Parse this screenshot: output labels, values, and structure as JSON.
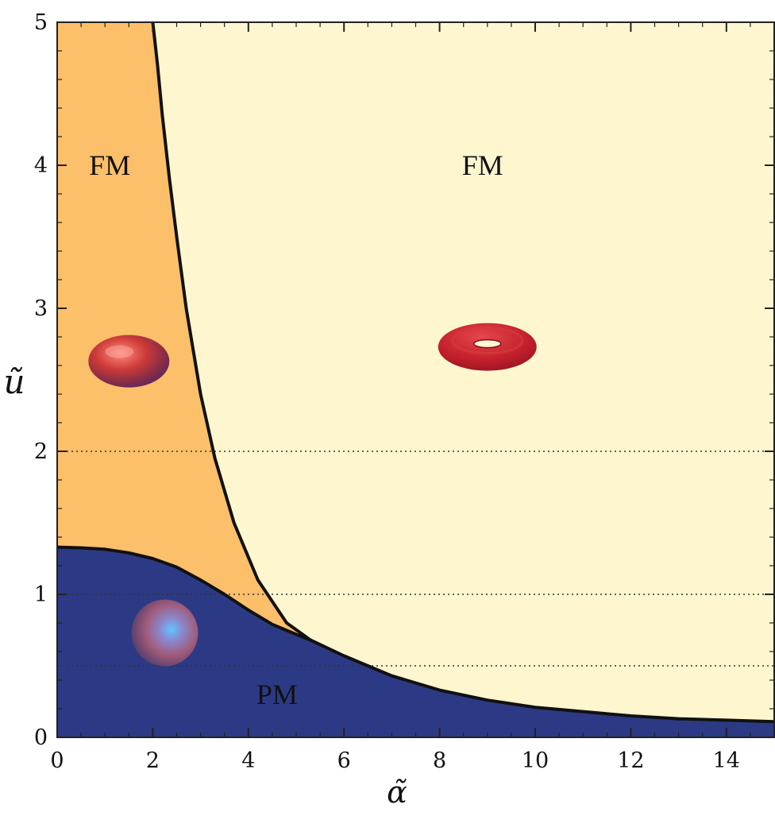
{
  "chart_data": {
    "type": "area",
    "xlabel": "α̃",
    "ylabel": "ũ",
    "xlim": [
      0,
      15
    ],
    "ylim": [
      0,
      5
    ],
    "xticks": [
      0,
      2,
      4,
      6,
      8,
      10,
      12,
      14
    ],
    "yticks": [
      0,
      1,
      2,
      3,
      4,
      5
    ],
    "reference_lines_y": [
      0.5,
      1,
      2
    ],
    "grid": false,
    "colors": {
      "pm_region": "#2c3a85",
      "fm_left_region": "#fcbf6a",
      "fm_right_region": "#fef6cf",
      "boundary": "#111111"
    },
    "series": [
      {
        "values": [
          {
            "x": 2.0,
            "y": 5.0
          },
          {
            "x": 2.1,
            "y": 4.7
          },
          {
            "x": 2.2,
            "y": 4.35
          },
          {
            "x": 2.35,
            "y": 3.9
          },
          {
            "x": 2.5,
            "y": 3.5
          },
          {
            "x": 2.7,
            "y": 3.0
          },
          {
            "x": 3.0,
            "y": 2.4
          },
          {
            "x": 3.3,
            "y": 1.95
          },
          {
            "x": 3.7,
            "y": 1.5
          },
          {
            "x": 4.2,
            "y": 1.1
          },
          {
            "x": 4.8,
            "y": 0.8
          },
          {
            "x": 5.3,
            "y": 0.68
          }
        ]
      },
      {
        "values": [
          {
            "x": 0.0,
            "y": 1.33
          },
          {
            "x": 0.5,
            "y": 1.325
          },
          {
            "x": 1.0,
            "y": 1.315
          },
          {
            "x": 1.5,
            "y": 1.29
          },
          {
            "x": 2.0,
            "y": 1.25
          },
          {
            "x": 2.5,
            "y": 1.19
          },
          {
            "x": 3.0,
            "y": 1.1
          },
          {
            "x": 3.5,
            "y": 1.0
          },
          {
            "x": 4.0,
            "y": 0.89
          },
          {
            "x": 4.5,
            "y": 0.79
          },
          {
            "x": 5.0,
            "y": 0.72
          },
          {
            "x": 5.3,
            "y": 0.68
          },
          {
            "x": 6.0,
            "y": 0.57
          },
          {
            "x": 7.0,
            "y": 0.43
          },
          {
            "x": 8.0,
            "y": 0.33
          },
          {
            "x": 9.0,
            "y": 0.26
          },
          {
            "x": 10.0,
            "y": 0.21
          },
          {
            "x": 11.0,
            "y": 0.18
          },
          {
            "x": 12.0,
            "y": 0.15
          },
          {
            "x": 13.0,
            "y": 0.13
          },
          {
            "x": 14.0,
            "y": 0.12
          },
          {
            "x": 15.0,
            "y": 0.11
          }
        ]
      }
    ],
    "annotations": [
      {
        "text": "FM",
        "x": 1.1,
        "y": 4.0
      },
      {
        "text": "FM",
        "x": 8.9,
        "y": 4.0
      },
      {
        "text": "PM",
        "x": 4.6,
        "y": 0.3
      }
    ],
    "shape_markers": [
      {
        "name": "oblate-spheroid-icon",
        "x": 1.5,
        "y": 2.63
      },
      {
        "name": "torus-icon",
        "x": 9.0,
        "y": 2.73
      },
      {
        "name": "sphere-icon",
        "x": 2.25,
        "y": 0.73
      }
    ]
  }
}
